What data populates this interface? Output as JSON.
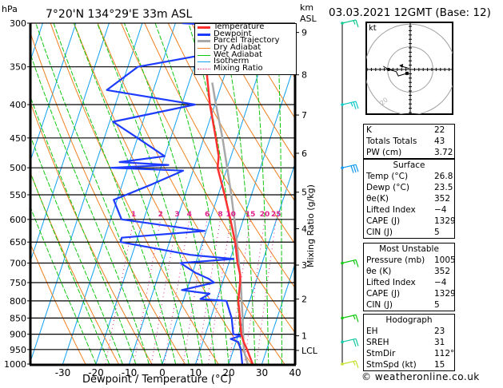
{
  "header": {
    "pressure_unit": "hPa",
    "location": "7°20'N  134°29'E  33m  ASL",
    "height_unit_line1": "km",
    "height_unit_line2": "ASL",
    "datetime": "03.03.2021  12GMT  (Base: 12)"
  },
  "footer": {
    "copyright": "© weatheronline.co.uk"
  },
  "legend": [
    {
      "label": "Temperature",
      "color": "#ff3030",
      "style": "solid"
    },
    {
      "label": "Dewpoint",
      "color": "#1e3cff",
      "style": "solid"
    },
    {
      "label": "Parcel Trajectory",
      "color": "#a8a8a8",
      "style": "solid"
    },
    {
      "label": "Dry Adiabat",
      "color": "#f08020",
      "style": "thin"
    },
    {
      "label": "Wet Adiabat",
      "color": "#10c810",
      "style": "thin"
    },
    {
      "label": "Isotherm",
      "color": "#10a0f0",
      "style": "thin"
    },
    {
      "label": "Mixing Ratio",
      "color": "#e0208c",
      "style": "dotted"
    }
  ],
  "indices": {
    "general": [
      {
        "key": "K",
        "value": "22"
      },
      {
        "key": "Totals Totals",
        "value": "43"
      },
      {
        "key": "PW (cm)",
        "value": "3.72"
      }
    ],
    "surface": {
      "title": "Surface",
      "rows": [
        {
          "key": "Temp (°C)",
          "value": "26.8"
        },
        {
          "key": "Dewp (°C)",
          "value": "23.5"
        },
        {
          "key": "θe(K)",
          "value": "352"
        },
        {
          "key": "Lifted Index",
          "value": "−4"
        },
        {
          "key": "CAPE (J)",
          "value": "1329"
        },
        {
          "key": "CIN (J)",
          "value": "5"
        }
      ]
    },
    "most_unstable": {
      "title": "Most Unstable",
      "rows": [
        {
          "key": "Pressure (mb)",
          "value": "1005"
        },
        {
          "key": "θe (K)",
          "value": "352"
        },
        {
          "key": "Lifted Index",
          "value": "−4"
        },
        {
          "key": "CAPE (J)",
          "value": "1329"
        },
        {
          "key": "CIN (J)",
          "value": "5"
        }
      ]
    },
    "hodograph": {
      "title": "Hodograph",
      "rows": [
        {
          "key": "EH",
          "value": "23"
        },
        {
          "key": "SREH",
          "value": "31"
        },
        {
          "key": "StmDir",
          "value": "112°"
        },
        {
          "key": "StmSpd (kt)",
          "value": "15"
        }
      ]
    }
  },
  "hodograph_panel": {
    "unit": "kt",
    "ring_labels": [
      "10",
      "20",
      "30",
      "40"
    ]
  },
  "chart_data": {
    "type": "line",
    "subtype": "skew-t log-p",
    "title": "7°20'N 134°29'E 33m ASL",
    "xlabel": "Dewpoint / Temperature (°C)",
    "ylabel": "hPa",
    "y2label": "km ASL",
    "mixing_ratio_label": "Mixing Ratio (g/kg)",
    "xlim": [
      -40,
      40
    ],
    "ylim": [
      1000,
      300
    ],
    "x_ticks": [
      -30,
      -20,
      -10,
      0,
      10,
      20,
      30,
      40
    ],
    "pressure_levels": [
      300,
      350,
      400,
      450,
      500,
      550,
      600,
      650,
      700,
      750,
      800,
      850,
      900,
      950,
      1000
    ],
    "km_ticks": [
      {
        "label": "1",
        "p": 905
      },
      {
        "label": "2",
        "p": 795
      },
      {
        "label": "3",
        "p": 705
      },
      {
        "label": "4",
        "p": 620
      },
      {
        "label": "5",
        "p": 545
      },
      {
        "label": "6",
        "p": 475
      },
      {
        "label": "7",
        "p": 415
      },
      {
        "label": "8",
        "p": 360
      },
      {
        "label": "9",
        "p": 310
      },
      {
        "label": "LCL",
        "p": 953
      }
    ],
    "mixing_ratio_values": [
      1,
      2,
      3,
      4,
      6,
      8,
      10,
      15,
      20,
      25
    ],
    "grid": true,
    "legend_position": "top-right",
    "series": [
      {
        "name": "Temperature",
        "points": [
          [
            1000,
            27.2
          ],
          [
            950,
            24.1
          ],
          [
            925,
            22.3
          ],
          [
            900,
            20.8
          ],
          [
            850,
            18.8
          ],
          [
            800,
            16.6
          ],
          [
            750,
            15.3
          ],
          [
            730,
            14.6
          ],
          [
            700,
            12.6
          ],
          [
            650,
            9.8
          ],
          [
            600,
            6.1
          ],
          [
            550,
            1.9
          ],
          [
            500,
            -2.9
          ],
          [
            480,
            -3.7
          ],
          [
            450,
            -6.4
          ],
          [
            400,
            -11.5
          ],
          [
            350,
            -16.4
          ],
          [
            320,
            -20.0
          ],
          [
            310,
            -21.0
          ],
          [
            300,
            -23.4
          ]
        ]
      },
      {
        "name": "Dewpoint",
        "points": [
          [
            1000,
            24.1
          ],
          [
            950,
            22.2
          ],
          [
            925,
            20.7
          ],
          [
            915,
            18.1
          ],
          [
            905,
            20.9
          ],
          [
            900,
            18.4
          ],
          [
            850,
            16.3
          ],
          [
            800,
            13.0
          ],
          [
            795,
            5.0
          ],
          [
            780,
            7.2
          ],
          [
            770,
            -1.5
          ],
          [
            750,
            7.5
          ],
          [
            740,
            5.5
          ],
          [
            725,
            1.0
          ],
          [
            700,
            -4.6
          ],
          [
            690,
            11.0
          ],
          [
            680,
            -2.5
          ],
          [
            650,
            -24.7
          ],
          [
            640,
            -24.8
          ],
          [
            625,
            -0.5
          ],
          [
            600,
            -26.7
          ],
          [
            560,
            -31.0
          ],
          [
            530,
            -21.0
          ],
          [
            505,
            -13.0
          ],
          [
            500,
            -35.0
          ],
          [
            495,
            -18.0
          ],
          [
            490,
            -33.0
          ],
          [
            480,
            -20.0
          ],
          [
            450,
            -30.0
          ],
          [
            425,
            -39.0
          ],
          [
            400,
            -16.0
          ],
          [
            380,
            -44.0
          ],
          [
            350,
            -37.0
          ],
          [
            330,
            -11.0
          ],
          [
            320,
            -1.5
          ],
          [
            305,
            -2.5
          ],
          [
            300,
            -28.0
          ]
        ]
      },
      {
        "name": "Parcel Trajectory",
        "points": [
          [
            1000,
            25.7
          ],
          [
            953,
            23.2
          ],
          [
            900,
            21.4
          ],
          [
            850,
            19.6
          ],
          [
            800,
            17.6
          ],
          [
            750,
            15.5
          ],
          [
            700,
            13.0
          ],
          [
            650,
            10.3
          ],
          [
            600,
            7.3
          ],
          [
            550,
            3.9
          ],
          [
            500,
            0.0
          ],
          [
            450,
            -4.4
          ],
          [
            400,
            -9.7
          ],
          [
            370,
            -13.0
          ]
        ]
      }
    ],
    "wind_barbs": [
      {
        "p": 300,
        "speed_kt": 15,
        "color": "#10c890"
      },
      {
        "p": 400,
        "speed_kt": 25,
        "color": "#10c8c8"
      },
      {
        "p": 500,
        "speed_kt": 30,
        "color": "#1098f0"
      },
      {
        "p": 700,
        "speed_kt": 15,
        "color": "#10c810"
      },
      {
        "p": 850,
        "speed_kt": 15,
        "color": "#10c810"
      },
      {
        "p": 925,
        "speed_kt": 20,
        "color": "#10c8a0"
      },
      {
        "p": 1000,
        "speed_kt": 15,
        "color": "#c8e030"
      }
    ],
    "hodograph": {
      "unit": "kt",
      "rings_kt": [
        10,
        20,
        30,
        40
      ],
      "trace_uv": [
        [
          -1.5,
          -1.8
        ],
        [
          -5.5,
          -3
        ],
        [
          -6.5,
          -1
        ],
        [
          -10,
          0
        ],
        [
          -12.5,
          1.5
        ]
      ],
      "storm_segment_uv": [
        [
          -4,
          1.5
        ],
        [
          -0.5,
          0.5
        ]
      ]
    }
  }
}
